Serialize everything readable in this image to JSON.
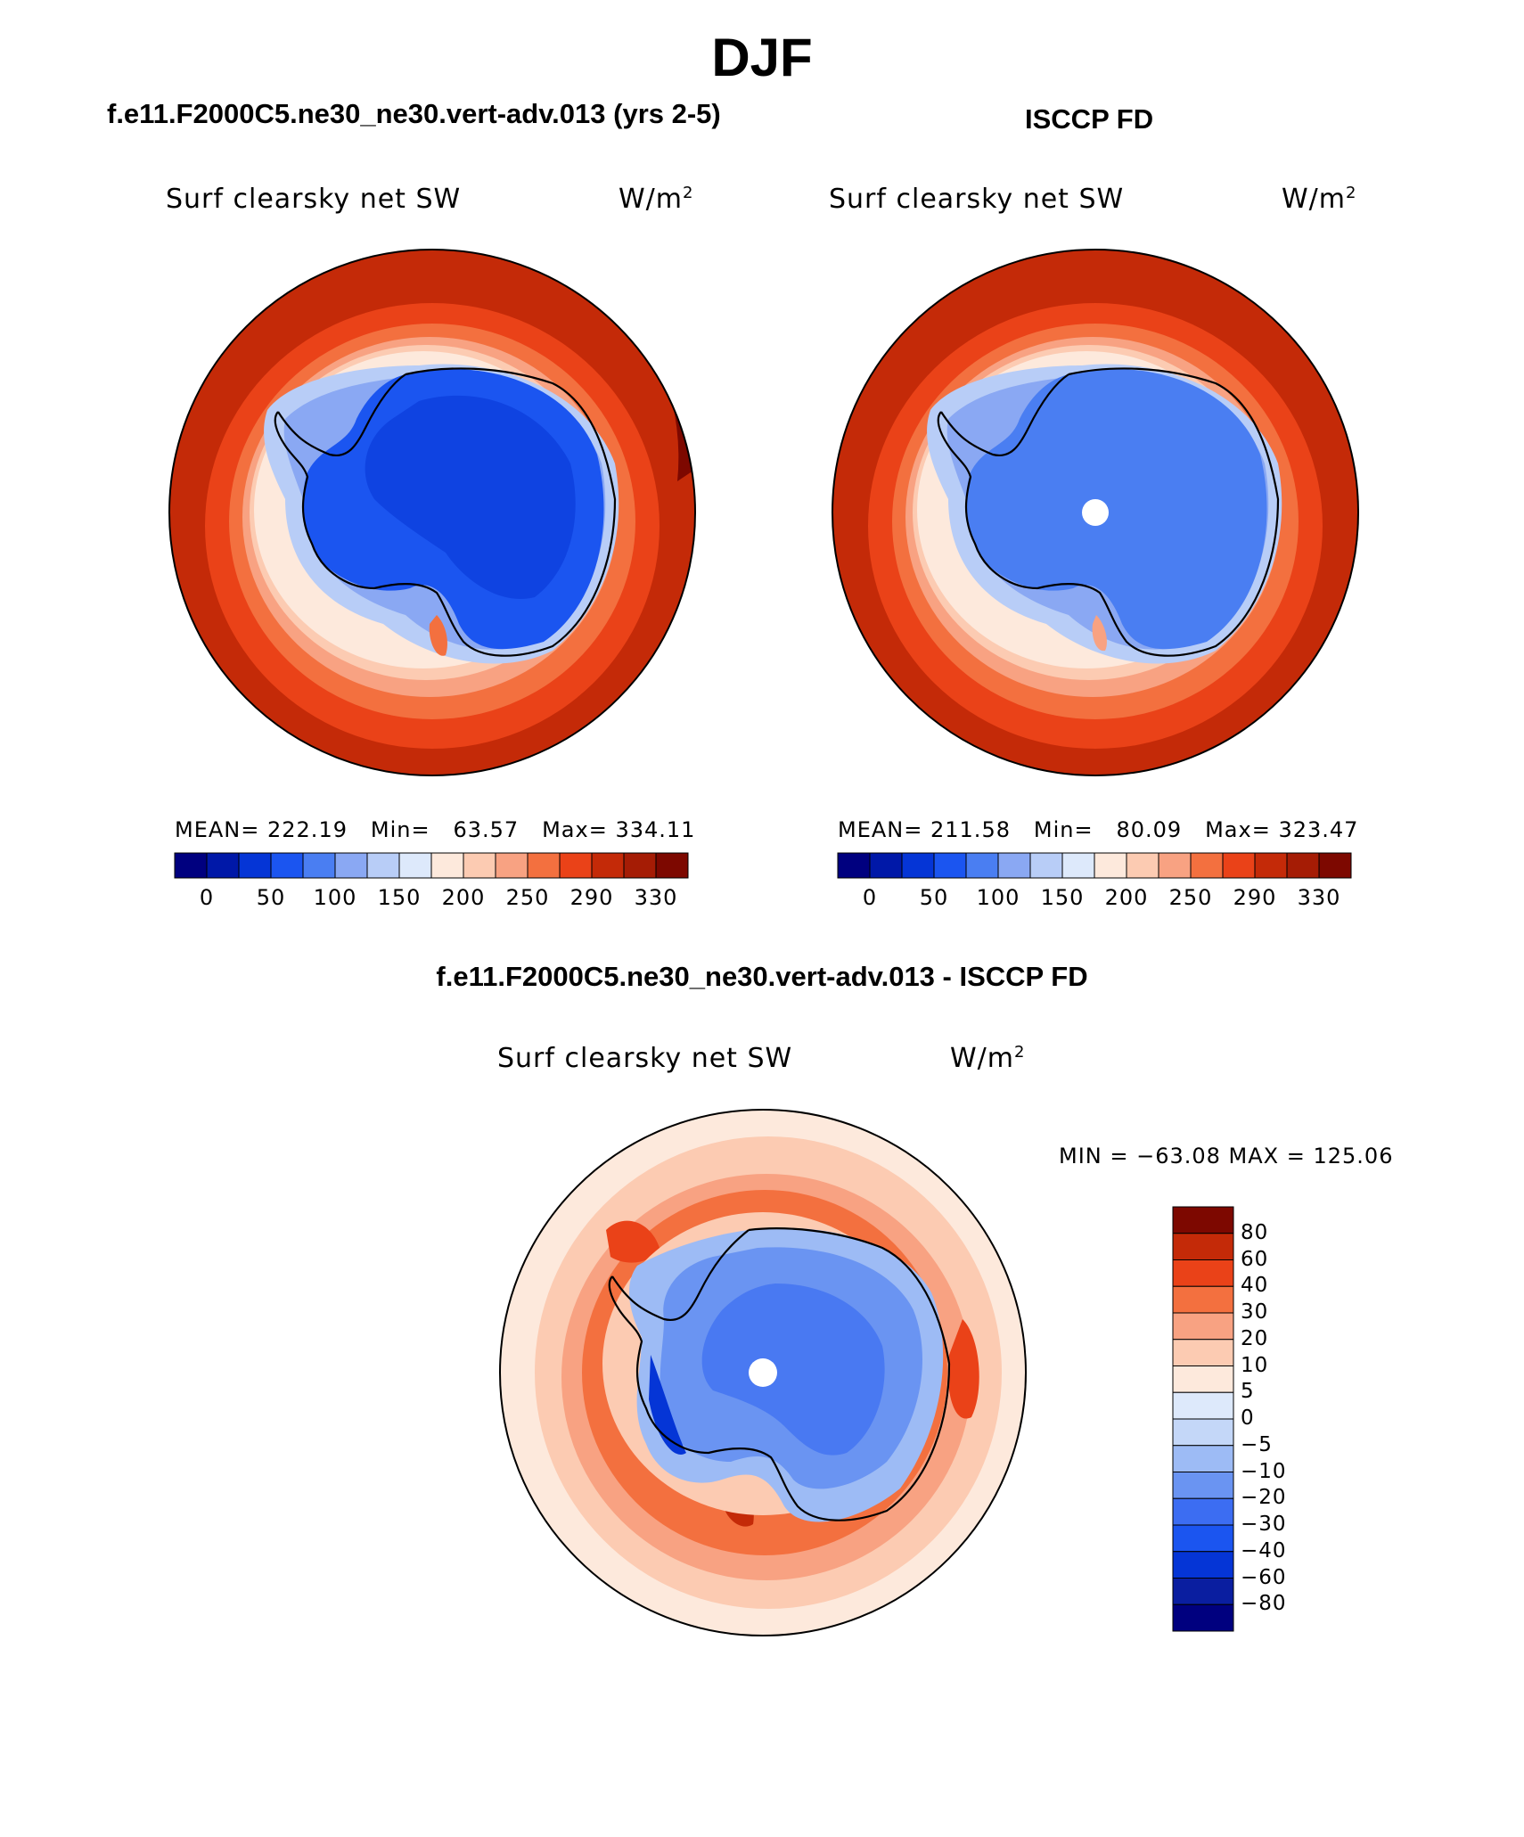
{
  "figure": {
    "title": "DJF",
    "panels": [
      {
        "title": "f.e11.F2000C5.ne30_ne30.vert-adv.013 (yrs 2-5)",
        "variable": "Surf clearsky net SW",
        "units": "W/m",
        "units_sup": "2",
        "stats": {
          "mean_label": "MEAN=",
          "mean": "222.19",
          "min_label": "Min=",
          "min": "63.57",
          "max_label": "Max=",
          "max": "334.11"
        },
        "colorbar_ticks": [
          "0",
          "50",
          "100",
          "150",
          "200",
          "250",
          "290",
          "330"
        ]
      },
      {
        "title": "ISCCP FD",
        "variable": "Surf clearsky net SW",
        "units": "W/m",
        "units_sup": "2",
        "stats": {
          "mean_label": "MEAN=",
          "mean": "211.58",
          "min_label": "Min=",
          "min": "80.09",
          "max_label": "Max=",
          "max": "323.47"
        },
        "colorbar_ticks": [
          "0",
          "50",
          "100",
          "150",
          "200",
          "250",
          "290",
          "330"
        ]
      },
      {
        "title": "f.e11.F2000C5.ne30_ne30.vert-adv.013 - ISCCP FD",
        "variable": "Surf clearsky net SW",
        "units": "W/m",
        "units_sup": "2",
        "stats": {
          "text": "MIN = −63.08 MAX = 125.06"
        },
        "colorbar_ticks": [
          "80",
          "60",
          "40",
          "30",
          "20",
          "10",
          "5",
          "0",
          "−5",
          "−10",
          "−20",
          "−30",
          "−40",
          "−60",
          "−80"
        ]
      }
    ],
    "colors": {
      "full_field_palette": [
        "#00007f",
        "#0018a8",
        "#0535d6",
        "#1b55f0",
        "#4a7ef2",
        "#8aa8f3",
        "#b8cdf7",
        "#dde9fb",
        "#fde9dc",
        "#fccbb2",
        "#f8a282",
        "#f3703f",
        "#ea4218",
        "#c42a08",
        "#a51c05",
        "#7d0800"
      ],
      "difference_palette": [
        "#00007f",
        "#0a1ea0",
        "#0535d6",
        "#1b55f0",
        "#3c6df2",
        "#6a94f2",
        "#9dbbf5",
        "#c4d7f8",
        "#dde9fb",
        "#fde9dc",
        "#fccbb2",
        "#f8a282",
        "#f3703f",
        "#ea4218",
        "#c42a08",
        "#7d0800"
      ]
    }
  }
}
